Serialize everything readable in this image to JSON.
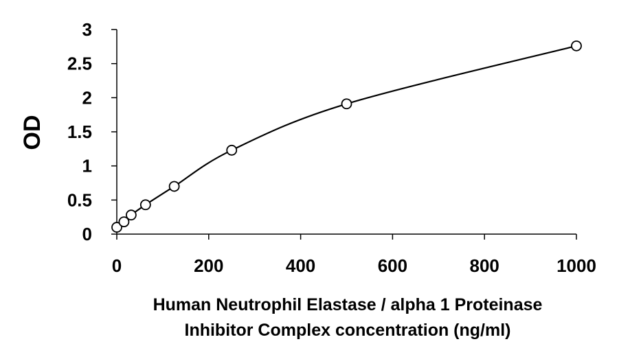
{
  "chart_data": {
    "type": "scatter",
    "title": "",
    "xlabel_lines": [
      "Human Neutrophil Elastase / alpha 1 Proteinase",
      "Inhibitor Complex concentration (ng/ml)"
    ],
    "ylabel": "OD",
    "xlim": [
      0,
      1000
    ],
    "ylim": [
      0,
      3
    ],
    "xticks": [
      0,
      200,
      400,
      600,
      800,
      1000
    ],
    "xtick_labels": [
      "0",
      "200",
      "400",
      "600",
      "800",
      "1000"
    ],
    "yticks": [
      0,
      0.5,
      1,
      1.5,
      2,
      2.5,
      3
    ],
    "ytick_labels": [
      "0",
      "0.5",
      "1",
      "1.5",
      "2",
      "2.5",
      "3"
    ],
    "grid": false,
    "legend": "none",
    "series": [
      {
        "marker": "open-circle",
        "line": "smooth-fit",
        "x": [
          0,
          15.6,
          31.25,
          62.5,
          125,
          250,
          500,
          1000
        ],
        "y": [
          0.1,
          0.18,
          0.28,
          0.43,
          0.7,
          1.23,
          1.91,
          2.76
        ]
      }
    ],
    "colors": {
      "marks": "#000000",
      "background": "#ffffff"
    }
  }
}
